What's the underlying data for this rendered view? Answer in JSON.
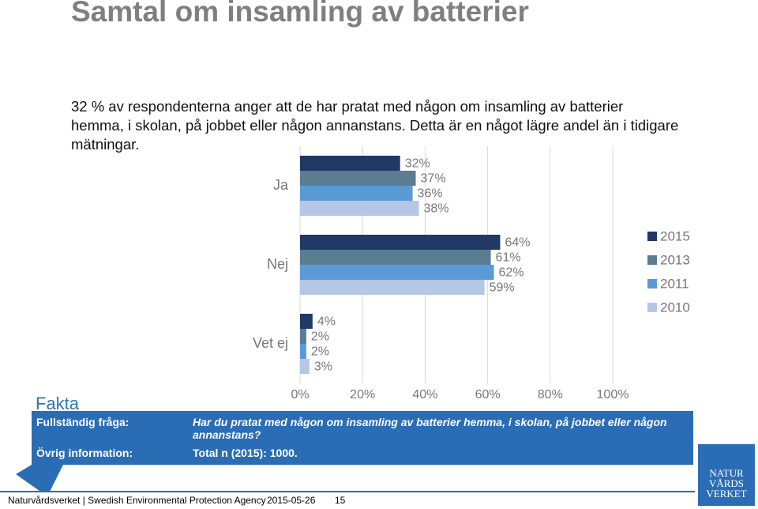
{
  "title": "Samtal om insamling av batterier",
  "body": [
    "32 % av respondenterna anger att de har pratat med någon om insamling av batterier",
    "hemma, i skolan, på jobbet eller någon annanstans. Detta är en något lägre andel än i tidigare",
    "mätningar."
  ],
  "fakta": {
    "heading": "Fakta",
    "question_label": "Fullständig fråga:",
    "question": "Har du pratat med någon om insamling av batterier hemma, i skolan, på jobbet eller någon annanstans?",
    "info_label": "Övrig information:",
    "info": "Total n (2015): 1000."
  },
  "footer": {
    "org": "Naturvårdsverket | Swedish Environmental Protection Agency",
    "date": "2015-05-26",
    "page": "15"
  },
  "logo": [
    "NATUR",
    "VÅRDS",
    "VERKET"
  ],
  "chart_data": {
    "type": "hbar",
    "categories": [
      "Ja",
      "Nej",
      "Vet ej"
    ],
    "series": [
      {
        "name": "2015",
        "color": "#203864",
        "values": [
          32,
          64,
          4
        ],
        "value_labels": [
          "32%",
          "64%",
          "4%"
        ]
      },
      {
        "name": "2013",
        "color": "#5a7d92",
        "values": [
          37,
          61,
          2
        ],
        "value_labels": [
          "37%",
          "61%",
          "2%"
        ]
      },
      {
        "name": "2011",
        "color": "#5b9bd5",
        "values": [
          36,
          62,
          2
        ],
        "value_labels": [
          "36%",
          "62%",
          "2%"
        ]
      },
      {
        "name": "2010",
        "color": "#b4c7e7",
        "values": [
          38,
          59,
          3
        ],
        "value_labels": [
          "38%",
          "59%",
          "3%"
        ]
      }
    ],
    "xlim": [
      0,
      100
    ],
    "xticks": [
      {
        "value": 0,
        "label": "0%"
      },
      {
        "value": 20,
        "label": "20%"
      },
      {
        "value": 40,
        "label": "40%"
      },
      {
        "value": 60,
        "label": "60%"
      },
      {
        "value": 80,
        "label": "80%"
      },
      {
        "value": 100,
        "label": "100%"
      }
    ],
    "grid": true,
    "legend": "right"
  }
}
